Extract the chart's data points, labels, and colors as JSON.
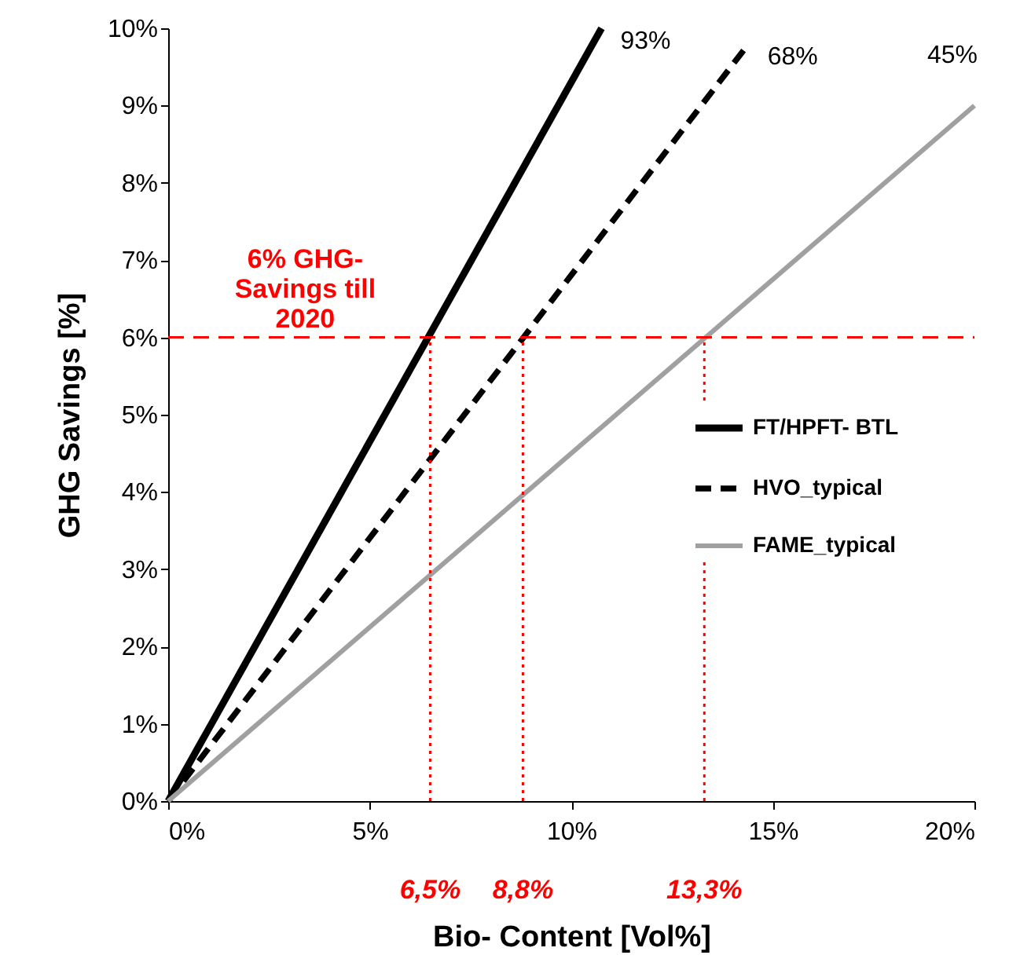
{
  "chart_data": {
    "type": "line",
    "xlabel": "Bio- Content [Vol%]",
    "ylabel": "GHG Savings [%]",
    "xlim": [
      0,
      20
    ],
    "xticks": [
      {
        "value": 0,
        "label": "0%"
      },
      {
        "value": 5,
        "label": "5%"
      },
      {
        "value": 10,
        "label": "10%"
      },
      {
        "value": 15,
        "label": "15%"
      },
      {
        "value": 20,
        "label": "20%"
      }
    ],
    "ylim": [
      0,
      10
    ],
    "yticks": [
      {
        "value": 0,
        "label": "0%"
      },
      {
        "value": 1,
        "label": "1%"
      },
      {
        "value": 2,
        "label": "2%"
      },
      {
        "value": 3,
        "label": "3%"
      },
      {
        "value": 4,
        "label": "4%"
      },
      {
        "value": 5,
        "label": "5%"
      },
      {
        "value": 6,
        "label": "6%"
      },
      {
        "value": 7,
        "label": "7%"
      },
      {
        "value": 8,
        "label": "8%"
      },
      {
        "value": 9,
        "label": "9%"
      },
      {
        "value": 10,
        "label": "10%"
      }
    ],
    "series": [
      {
        "name": "FT/HPFT- BTL",
        "color": "#000000",
        "line_style": "solid",
        "x": [
          0,
          10.75
        ],
        "values": [
          0,
          10
        ]
      },
      {
        "name": "HVO_typical",
        "color": "#000000",
        "line_style": "dashed",
        "x": [
          0,
          14.4
        ],
        "values": [
          0,
          9.8
        ]
      },
      {
        "name": "FAME_typical",
        "color": "#a0a0a0",
        "line_style": "solid",
        "x": [
          0,
          20
        ],
        "values": [
          0,
          9
        ]
      }
    ],
    "ref_lines": [
      {
        "axis": "y",
        "value": 6,
        "label": "6% GHG-Savings till 2020",
        "color": "#ff0000",
        "line_style": "dashed"
      },
      {
        "axis": "x",
        "value": 6.5,
        "label": "6,5%",
        "color": "#ff0000",
        "line_style": "dotted"
      },
      {
        "axis": "x",
        "value": 8.8,
        "label": "8,8%",
        "color": "#ff0000",
        "line_style": "dotted"
      },
      {
        "axis": "x",
        "value": 13.3,
        "label": "13,3%",
        "color": "#ff0000",
        "line_style": "dotted"
      }
    ],
    "annotations": [
      "93%",
      "68%",
      "45%"
    ],
    "legend": "right",
    "grid": false,
    "marker": "none"
  }
}
